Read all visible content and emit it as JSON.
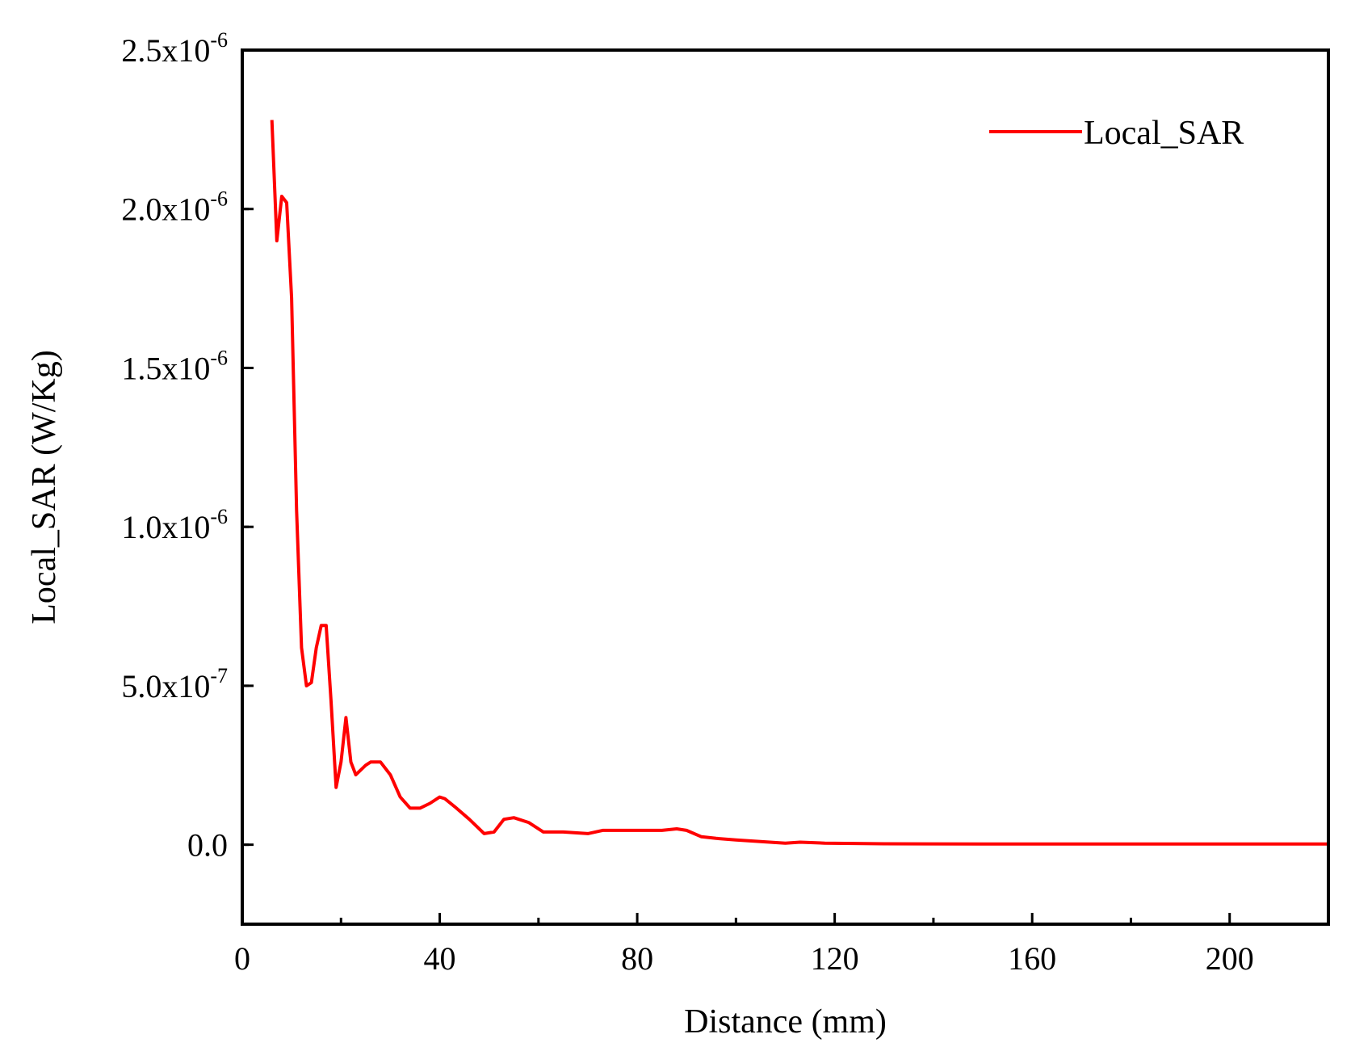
{
  "chart_data": {
    "type": "line",
    "xlabel": "Distance (mm)",
    "ylabel": "Local_SAR (W/Kg)",
    "xlim": [
      0,
      220
    ],
    "ylim": [
      -2.5e-07,
      2.5e-06
    ],
    "x_ticks": [
      0,
      40,
      80,
      120,
      160,
      200
    ],
    "x_tick_labels": [
      "0",
      "40",
      "80",
      "120",
      "160",
      "200"
    ],
    "y_ticks": [
      0,
      5e-07,
      1e-06,
      1.5e-06,
      2e-06,
      2.5e-06
    ],
    "y_tick_labels": [
      {
        "mantissa": "0.0",
        "exponent": ""
      },
      {
        "mantissa": "5.0x10",
        "exponent": "-7"
      },
      {
        "mantissa": "1.0x10",
        "exponent": "-6"
      },
      {
        "mantissa": "1.5x10",
        "exponent": "-6"
      },
      {
        "mantissa": "2.0x10",
        "exponent": "-6"
      },
      {
        "mantissa": "2.5x10",
        "exponent": "-6"
      }
    ],
    "grid": false,
    "legend_position": "top-right",
    "series": [
      {
        "name": "Local_SAR",
        "color": "#ff0000",
        "x": [
          6,
          7,
          8,
          9,
          10,
          11,
          12,
          13,
          14,
          15,
          16,
          17,
          18,
          19,
          20,
          21,
          22,
          23,
          24,
          25,
          26,
          28,
          30,
          32,
          34,
          36,
          38,
          40,
          41,
          43,
          46,
          49,
          51,
          53,
          55,
          58,
          61,
          65,
          70,
          73,
          80,
          85,
          88,
          90,
          93,
          96,
          100,
          105,
          110,
          113,
          118,
          130,
          150,
          180,
          200,
          220
        ],
        "y": [
          2.28e-06,
          1.9e-06,
          2.04e-06,
          2.02e-06,
          1.72e-06,
          1.05e-06,
          6.2e-07,
          5e-07,
          5.1e-07,
          6.2e-07,
          6.9e-07,
          6.9e-07,
          4.5e-07,
          1.8e-07,
          2.6e-07,
          4e-07,
          2.6e-07,
          2.2e-07,
          2.35e-07,
          2.5e-07,
          2.6e-07,
          2.6e-07,
          2.2e-07,
          1.5e-07,
          1.15e-07,
          1.15e-07,
          1.3e-07,
          1.5e-07,
          1.45e-07,
          1.2e-07,
          8e-08,
          3.5e-08,
          4e-08,
          8e-08,
          8.5e-08,
          7e-08,
          4e-08,
          4e-08,
          3.5e-08,
          4.5e-08,
          4.5e-08,
          4.5e-08,
          5e-08,
          4.5e-08,
          2.5e-08,
          2e-08,
          1.5e-08,
          1e-08,
          5e-09,
          8e-09,
          5e-09,
          3e-09,
          2e-09,
          2e-09,
          2e-09,
          2e-09
        ]
      }
    ]
  }
}
